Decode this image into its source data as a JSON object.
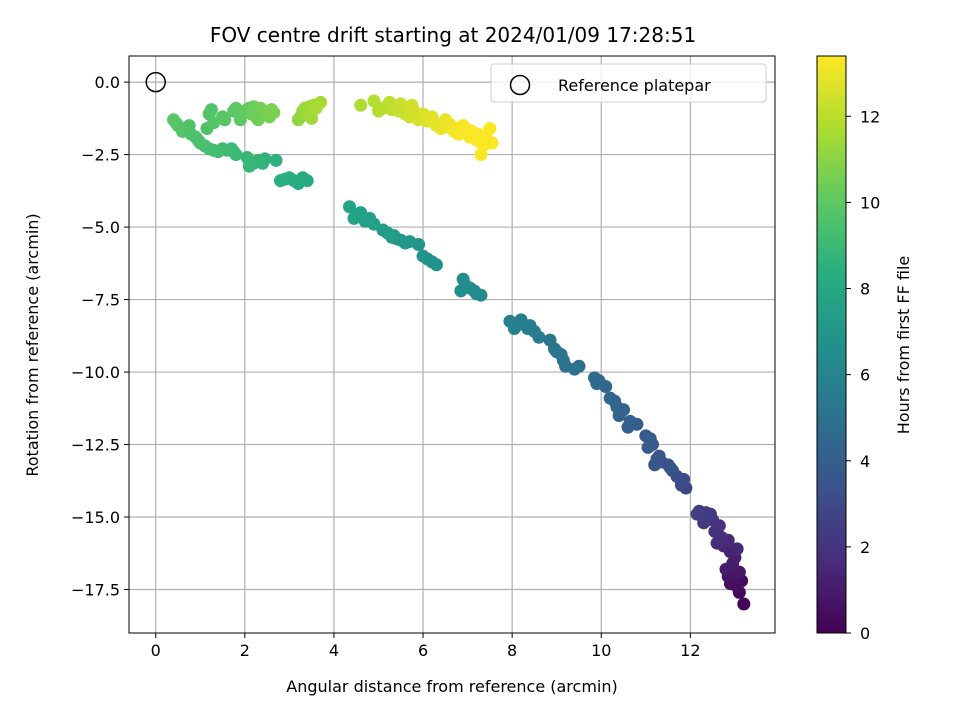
{
  "chart_data": {
    "type": "scatter",
    "title": "FOV centre drift starting at 2024/01/09 17:28:51",
    "xlabel": "Angular distance from reference (arcmin)",
    "ylabel": "Rotation from reference (arcmin)",
    "xlim": [
      -0.6,
      13.9
    ],
    "ylim": [
      -19.0,
      0.9
    ],
    "xticks": [
      0,
      2,
      4,
      6,
      8,
      10,
      12
    ],
    "yticks": [
      0.0,
      -2.5,
      -5.0,
      -7.5,
      -10.0,
      -12.5,
      -15.0,
      -17.5
    ],
    "xtick_labels": [
      "0",
      "2",
      "4",
      "6",
      "8",
      "10",
      "12"
    ],
    "ytick_labels": [
      "0.0",
      "−2.5",
      "−5.0",
      "−7.5",
      "−10.0",
      "−12.5",
      "−15.0",
      "−17.5"
    ],
    "grid": true,
    "colormap": "viridis",
    "colorbar": {
      "label": "Hours from first FF file",
      "range": [
        0,
        13.4
      ],
      "ticks": [
        0,
        2,
        4,
        6,
        8,
        10,
        12
      ],
      "tick_labels": [
        "0",
        "2",
        "4",
        "6",
        "8",
        "10",
        "12"
      ]
    },
    "legend": {
      "position": "top-right",
      "entries": [
        {
          "label": "Reference platepar",
          "marker": "open-circle"
        }
      ]
    },
    "reference_point": {
      "x": 0,
      "y": 0
    },
    "points": {
      "x": [
        13.2,
        13.1,
        13.15,
        13.05,
        12.9,
        13.0,
        12.85,
        13.1,
        12.8,
        12.95,
        13.0,
        12.9,
        12.75,
        13.05,
        12.85,
        12.6,
        12.7,
        12.55,
        12.65,
        12.5,
        12.4,
        12.45,
        12.3,
        12.35,
        12.2,
        12.25,
        12.15,
        11.9,
        11.8,
        11.85,
        11.7,
        11.6,
        11.5,
        11.55,
        11.35,
        11.3,
        11.2,
        11.25,
        11.15,
        11.0,
        11.1,
        11.05,
        10.8,
        10.6,
        10.65,
        10.4,
        10.5,
        10.35,
        10.3,
        10.2,
        10.1,
        9.95,
        9.85,
        9.9,
        9.5,
        9.4,
        9.2,
        9.15,
        9.1,
        9.0,
        8.95,
        8.85,
        8.6,
        8.5,
        8.4,
        8.35,
        8.2,
        8.15,
        8.1,
        8.05,
        7.95,
        7.3,
        7.2,
        7.15,
        7.05,
        6.95,
        6.9,
        6.85,
        6.3,
        6.2,
        6.1,
        6.0,
        5.9,
        5.7,
        5.6,
        5.5,
        5.4,
        5.35,
        5.3,
        5.2,
        5.1,
        4.9,
        4.8,
        4.7,
        4.6,
        4.5,
        4.45,
        4.35,
        3.4,
        3.3,
        3.2,
        3.1,
        3.0,
        2.9,
        2.8,
        2.7,
        2.45,
        2.4,
        2.3,
        2.2,
        2.1,
        2.05,
        1.8,
        1.75,
        1.7,
        1.6,
        1.5,
        1.4,
        1.3,
        1.2,
        1.1,
        1.0,
        0.95,
        0.9,
        0.8,
        0.75,
        0.7,
        0.6,
        0.5,
        0.45,
        0.4,
        1.15,
        1.2,
        1.25,
        1.3,
        1.5,
        1.55,
        1.75,
        1.8,
        1.9,
        2.0,
        2.05,
        2.1,
        2.15,
        2.2,
        2.25,
        2.3,
        2.35,
        2.4,
        2.5,
        2.55,
        2.6,
        2.65,
        3.2,
        3.25,
        3.3,
        3.35,
        3.4,
        3.45,
        3.5,
        3.55,
        3.6,
        3.7,
        4.6,
        4.9,
        5.0,
        5.1,
        5.2,
        5.25,
        5.3,
        5.4,
        5.45,
        5.5,
        5.6,
        5.65,
        5.7,
        5.75,
        5.8,
        5.9,
        6.0,
        6.05,
        6.1,
        6.2,
        6.25,
        6.3,
        6.4,
        6.5,
        6.55,
        6.6,
        6.7,
        6.75,
        6.8,
        6.9,
        7.0,
        7.05,
        7.1,
        7.2,
        7.25,
        7.3,
        7.35,
        7.4,
        7.45,
        7.5,
        7.55
      ],
      "y": [
        -18.0,
        -17.6,
        -17.2,
        -17.4,
        -17.3,
        -17.0,
        -17.05,
        -16.9,
        -16.8,
        -16.6,
        -16.4,
        -16.2,
        -16.0,
        -16.1,
        -15.8,
        -15.9,
        -15.7,
        -15.5,
        -15.3,
        -15.1,
        -15.0,
        -14.9,
        -15.2,
        -14.85,
        -14.8,
        -14.95,
        -14.9,
        -14.0,
        -13.9,
        -13.7,
        -13.6,
        -13.4,
        -13.2,
        -13.3,
        -13.1,
        -12.9,
        -13.2,
        -13.0,
        -12.5,
        -12.2,
        -12.3,
        -12.6,
        -11.8,
        -11.9,
        -11.7,
        -11.5,
        -11.3,
        -11.2,
        -11.0,
        -10.9,
        -10.5,
        -10.3,
        -10.2,
        -10.4,
        -9.8,
        -9.9,
        -9.8,
        -9.6,
        -9.4,
        -9.3,
        -9.2,
        -8.9,
        -8.8,
        -8.6,
        -8.4,
        -8.5,
        -8.2,
        -8.3,
        -8.4,
        -8.5,
        -8.25,
        -7.35,
        -7.3,
        -7.2,
        -7.1,
        -7.0,
        -6.8,
        -7.2,
        -6.3,
        -6.2,
        -6.1,
        -6.0,
        -5.6,
        -5.5,
        -5.55,
        -5.45,
        -5.4,
        -5.3,
        -5.35,
        -5.2,
        -5.1,
        -4.9,
        -4.7,
        -4.8,
        -4.5,
        -4.6,
        -4.7,
        -4.3,
        -3.4,
        -3.3,
        -3.5,
        -3.4,
        -3.3,
        -3.35,
        -3.4,
        -2.7,
        -2.65,
        -2.8,
        -2.7,
        -2.8,
        -2.9,
        -2.6,
        -2.5,
        -2.4,
        -2.3,
        -2.35,
        -2.3,
        -2.4,
        -2.35,
        -2.3,
        -2.2,
        -2.1,
        -2.0,
        -1.9,
        -1.8,
        -1.5,
        -1.6,
        -1.7,
        -1.5,
        -1.4,
        -1.3,
        -1.6,
        -1.1,
        -0.95,
        -1.4,
        -1.2,
        -1.3,
        -1.0,
        -0.9,
        -1.3,
        -1.0,
        -0.95,
        -0.9,
        -1.1,
        -0.85,
        -1.2,
        -1.3,
        -0.9,
        -1.0,
        -1.1,
        -1.2,
        -0.95,
        -1.05,
        -1.3,
        -1.2,
        -1.0,
        -0.9,
        -1.1,
        -0.85,
        -1.25,
        -0.8,
        -0.9,
        -0.7,
        -0.8,
        -0.65,
        -1.0,
        -0.9,
        -0.8,
        -0.7,
        -0.95,
        -0.85,
        -1.0,
        -0.75,
        -1.1,
        -0.9,
        -1.2,
        -0.8,
        -1.0,
        -1.3,
        -1.1,
        -1.25,
        -1.35,
        -1.2,
        -1.4,
        -1.5,
        -1.6,
        -1.3,
        -1.55,
        -1.45,
        -1.7,
        -1.6,
        -1.8,
        -1.5,
        -1.65,
        -1.9,
        -1.7,
        -2.0,
        -1.8,
        -2.5,
        -2.2,
        -1.9,
        -2.0,
        -1.6,
        -2.1
      ],
      "c": [
        0.2,
        0.3,
        0.4,
        0.5,
        0.6,
        0.7,
        0.8,
        0.9,
        1.0,
        1.1,
        1.2,
        1.3,
        1.4,
        1.5,
        1.6,
        1.7,
        1.8,
        1.9,
        2.0,
        2.1,
        2.2,
        2.25,
        2.3,
        2.35,
        2.4,
        2.45,
        2.5,
        2.9,
        3.0,
        3.1,
        3.2,
        3.3,
        3.4,
        3.45,
        3.5,
        3.55,
        3.6,
        3.65,
        3.7,
        3.8,
        3.85,
        3.9,
        4.0,
        4.1,
        4.15,
        4.2,
        4.3,
        4.35,
        4.4,
        4.45,
        4.5,
        4.6,
        4.65,
        4.7,
        4.9,
        5.0,
        5.1,
        5.15,
        5.2,
        5.25,
        5.3,
        5.35,
        5.5,
        5.55,
        5.6,
        5.65,
        5.7,
        5.75,
        5.8,
        5.85,
        5.9,
        6.3,
        6.35,
        6.4,
        6.45,
        6.5,
        6.55,
        6.6,
        6.8,
        6.85,
        6.9,
        6.95,
        7.0,
        7.1,
        7.15,
        7.2,
        7.25,
        7.3,
        7.35,
        7.4,
        7.45,
        7.55,
        7.6,
        7.65,
        7.7,
        7.75,
        7.8,
        7.85,
        8.2,
        8.25,
        8.3,
        8.35,
        8.4,
        8.45,
        8.5,
        8.6,
        8.7,
        8.75,
        8.8,
        8.85,
        8.9,
        8.95,
        9.0,
        9.05,
        9.1,
        9.15,
        9.2,
        9.25,
        9.3,
        9.35,
        9.4,
        9.45,
        9.5,
        9.55,
        9.6,
        9.65,
        9.7,
        9.75,
        9.8,
        9.85,
        9.9,
        9.6,
        9.7,
        9.75,
        9.8,
        9.9,
        9.95,
        10.0,
        10.05,
        10.1,
        10.15,
        10.2,
        10.25,
        10.3,
        10.35,
        10.4,
        10.45,
        10.5,
        10.55,
        10.6,
        10.65,
        10.7,
        10.75,
        11.2,
        11.25,
        11.3,
        11.35,
        11.4,
        11.45,
        11.5,
        11.55,
        11.6,
        11.65,
        11.8,
        11.9,
        11.95,
        12.0,
        12.05,
        12.1,
        12.15,
        12.2,
        12.25,
        12.3,
        12.35,
        12.4,
        12.45,
        12.5,
        12.55,
        12.6,
        12.65,
        12.7,
        12.75,
        12.8,
        12.85,
        12.9,
        12.95,
        13.0,
        13.05,
        13.1,
        13.15,
        13.2,
        13.25,
        13.3,
        13.3,
        13.32,
        13.34,
        13.35,
        13.36,
        13.37,
        13.38,
        13.39,
        13.39,
        13.4,
        13.4
      ]
    }
  }
}
